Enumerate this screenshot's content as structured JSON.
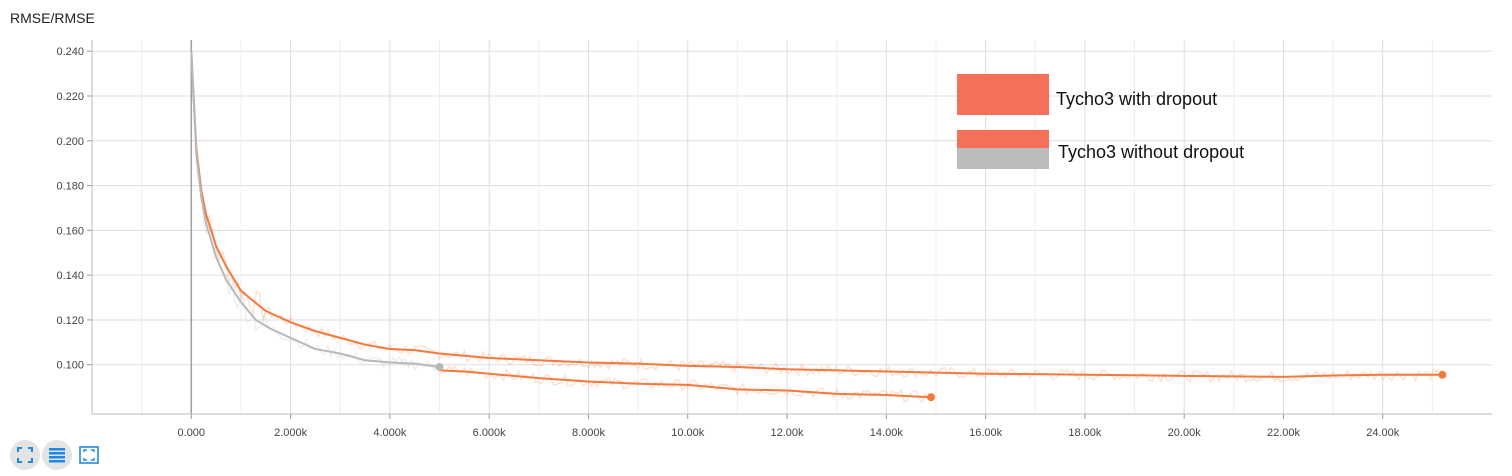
{
  "chart_title": "RMSE/RMSE",
  "toolbar": {
    "items": [
      {
        "name": "fullscreen-icon"
      },
      {
        "name": "list-icon"
      },
      {
        "name": "fit-domain-icon"
      }
    ],
    "icon_color": "#1e88e5"
  },
  "chart_data": {
    "type": "line",
    "title": "",
    "xlabel": "",
    "ylabel": "",
    "xlim": [
      -2000,
      26200
    ],
    "ylim": [
      0.078,
      0.245
    ],
    "x_ticks": [
      0,
      2000,
      4000,
      6000,
      8000,
      10000,
      12000,
      14000,
      16000,
      18000,
      20000,
      22000,
      24000
    ],
    "x_tick_labels": [
      "0.000",
      "2.000k",
      "4.000k",
      "6.000k",
      "8.000k",
      "10.00k",
      "12.00k",
      "14.00k",
      "16.00k",
      "18.00k",
      "20.00k",
      "22.00k",
      "24.00k"
    ],
    "y_ticks": [
      0.1,
      0.12,
      0.14,
      0.16,
      0.18,
      0.2,
      0.22,
      0.24
    ],
    "y_tick_labels": [
      "0.100",
      "0.120",
      "0.140",
      "0.160",
      "0.180",
      "0.200",
      "0.220",
      "0.240"
    ],
    "grid": true,
    "legend": {
      "placement": "top-right",
      "entries": [
        {
          "label": "Tycho3 with dropout",
          "colors": [
            "#f4705a"
          ]
        },
        {
          "label": "Tycho3 without dropout",
          "colors": [
            "#f4705a",
            "#bcbcbc"
          ]
        }
      ]
    },
    "series": [
      {
        "color": "#f4793d",
        "x": [
          0,
          100,
          200,
          300,
          500,
          700,
          1000,
          1500,
          2000,
          2500,
          3000,
          3500,
          4000,
          4500,
          5000,
          5500,
          6000,
          7000,
          8000,
          9000,
          10000,
          11000,
          12000,
          13000,
          14000,
          15000,
          16000,
          17000,
          18000,
          19000,
          20000,
          21000,
          22000,
          23000,
          24000,
          25200
        ],
        "y": [
          0.24,
          0.197,
          0.178,
          0.167,
          0.153,
          0.144,
          0.133,
          0.124,
          0.119,
          0.115,
          0.112,
          0.109,
          0.107,
          0.1065,
          0.105,
          0.104,
          0.103,
          0.102,
          0.101,
          0.1005,
          0.0995,
          0.099,
          0.098,
          0.0975,
          0.097,
          0.0965,
          0.096,
          0.0958,
          0.0955,
          0.0953,
          0.095,
          0.0948,
          0.0946,
          0.0952,
          0.0955,
          0.0955
        ]
      },
      {
        "color": "#f4793d",
        "x": [
          5000,
          5500,
          6000,
          7000,
          8000,
          9000,
          10000,
          11000,
          12000,
          13000,
          14000,
          14900
        ],
        "y": [
          0.0975,
          0.097,
          0.096,
          0.094,
          0.0925,
          0.0915,
          0.091,
          0.089,
          0.0885,
          0.087,
          0.0865,
          0.0855
        ]
      },
      {
        "color": "#b8b8b8",
        "x": [
          0,
          100,
          200,
          300,
          500,
          700,
          1000,
          1300,
          1600,
          2000,
          2500,
          3000,
          3500,
          4000,
          4500,
          5000
        ],
        "y": [
          0.24,
          0.195,
          0.175,
          0.163,
          0.148,
          0.138,
          0.128,
          0.12,
          0.116,
          0.112,
          0.107,
          0.105,
          0.102,
          0.101,
          0.1005,
          0.099
        ]
      }
    ]
  }
}
